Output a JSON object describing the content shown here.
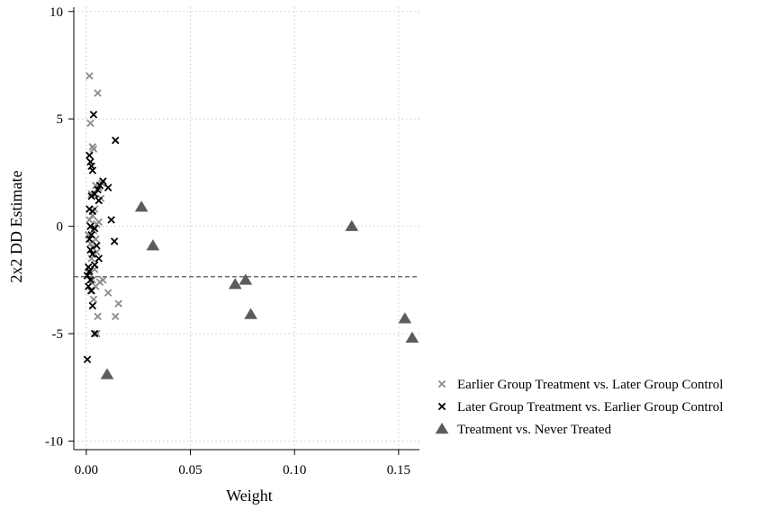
{
  "chart_data": {
    "type": "scatter",
    "xlabel": "Weight",
    "ylabel": "2x2 DD Estimate",
    "xlim": [
      -0.006,
      0.16
    ],
    "ylim": [
      -10.4,
      10.2
    ],
    "xticks": [
      0,
      0.05,
      0.1,
      0.15
    ],
    "xtick_labels": [
      "0.00",
      "0.05",
      "0.10",
      "0.15"
    ],
    "yticks": [
      -10,
      -5,
      0,
      5,
      10
    ],
    "ytick_labels": [
      "-10",
      "-5",
      "0",
      "5",
      "10"
    ],
    "grid": "dotted",
    "reference_line_y": -2.35,
    "legend_position": "right",
    "series": [
      {
        "name": "Earlier Group Treatment vs. Later Group Control",
        "marker": "x",
        "color": "#8c8c8c",
        "points": [
          [
            0.0015,
            7.0
          ],
          [
            0.0055,
            6.2
          ],
          [
            0.002,
            4.8
          ],
          [
            0.0035,
            3.6
          ],
          [
            0.003,
            3.7
          ],
          [
            0.0075,
            2.0
          ],
          [
            0.0045,
            1.9
          ],
          [
            0.006,
            1.8
          ],
          [
            0.0025,
            1.5
          ],
          [
            0.007,
            1.3
          ],
          [
            0.004,
            0.8
          ],
          [
            0.003,
            0.5
          ],
          [
            0.0015,
            0.3
          ],
          [
            0.006,
            0.2
          ],
          [
            0.005,
            0.1
          ],
          [
            0.002,
            0.0
          ],
          [
            0.0035,
            -0.2
          ],
          [
            0.001,
            -0.4
          ],
          [
            0.0045,
            -0.6
          ],
          [
            0.002,
            -0.8
          ],
          [
            0.003,
            -1.0
          ],
          [
            0.005,
            -1.2
          ],
          [
            0.0025,
            -1.5
          ],
          [
            0.004,
            -2.0
          ],
          [
            0.0015,
            -2.2
          ],
          [
            0.003,
            -2.5
          ],
          [
            0.0065,
            -2.6
          ],
          [
            0.008,
            -2.5
          ],
          [
            0.0045,
            -2.8
          ],
          [
            0.002,
            -3.0
          ],
          [
            0.0035,
            -3.4
          ],
          [
            0.0105,
            -3.1
          ],
          [
            0.0155,
            -3.6
          ],
          [
            0.0055,
            -4.2
          ],
          [
            0.014,
            -4.2
          ],
          [
            0.005,
            -5.0
          ]
        ]
      },
      {
        "name": "Later Group Treatment vs. Earlier Group Control",
        "marker": "x",
        "color": "#000000",
        "points": [
          [
            0.0035,
            5.2
          ],
          [
            0.014,
            4.0
          ],
          [
            0.0015,
            3.3
          ],
          [
            0.002,
            3.0
          ],
          [
            0.0025,
            2.8
          ],
          [
            0.003,
            2.6
          ],
          [
            0.008,
            2.1
          ],
          [
            0.0065,
            1.9
          ],
          [
            0.0105,
            1.8
          ],
          [
            0.0055,
            1.7
          ],
          [
            0.004,
            1.5
          ],
          [
            0.0025,
            1.4
          ],
          [
            0.006,
            1.2
          ],
          [
            0.0015,
            0.8
          ],
          [
            0.003,
            0.7
          ],
          [
            0.012,
            0.3
          ],
          [
            0.002,
            0.0
          ],
          [
            0.004,
            -0.1
          ],
          [
            0.0025,
            -0.4
          ],
          [
            0.0015,
            -0.6
          ],
          [
            0.0135,
            -0.7
          ],
          [
            0.005,
            -0.9
          ],
          [
            0.002,
            -1.1
          ],
          [
            0.003,
            -1.3
          ],
          [
            0.006,
            -1.5
          ],
          [
            0.004,
            -1.8
          ],
          [
            0.001,
            -1.9
          ],
          [
            0.0015,
            -2.1
          ],
          [
            0.0005,
            -2.3
          ],
          [
            0.002,
            -2.5
          ],
          [
            0.001,
            -2.8
          ],
          [
            0.0025,
            -3.0
          ],
          [
            0.003,
            -3.7
          ],
          [
            0.004,
            -5.0
          ],
          [
            0.0005,
            -6.2
          ]
        ]
      },
      {
        "name": "Treatment vs. Never Treated",
        "marker": "triangle",
        "color": "#5c5c5c",
        "points": [
          [
            0.0265,
            0.9
          ],
          [
            0.032,
            -0.9
          ],
          [
            0.01,
            -6.9
          ],
          [
            0.0715,
            -2.7
          ],
          [
            0.0765,
            -2.5
          ],
          [
            0.079,
            -4.1
          ],
          [
            0.1275,
            0.0
          ],
          [
            0.153,
            -4.3
          ],
          [
            0.1565,
            -5.2
          ]
        ]
      }
    ]
  }
}
